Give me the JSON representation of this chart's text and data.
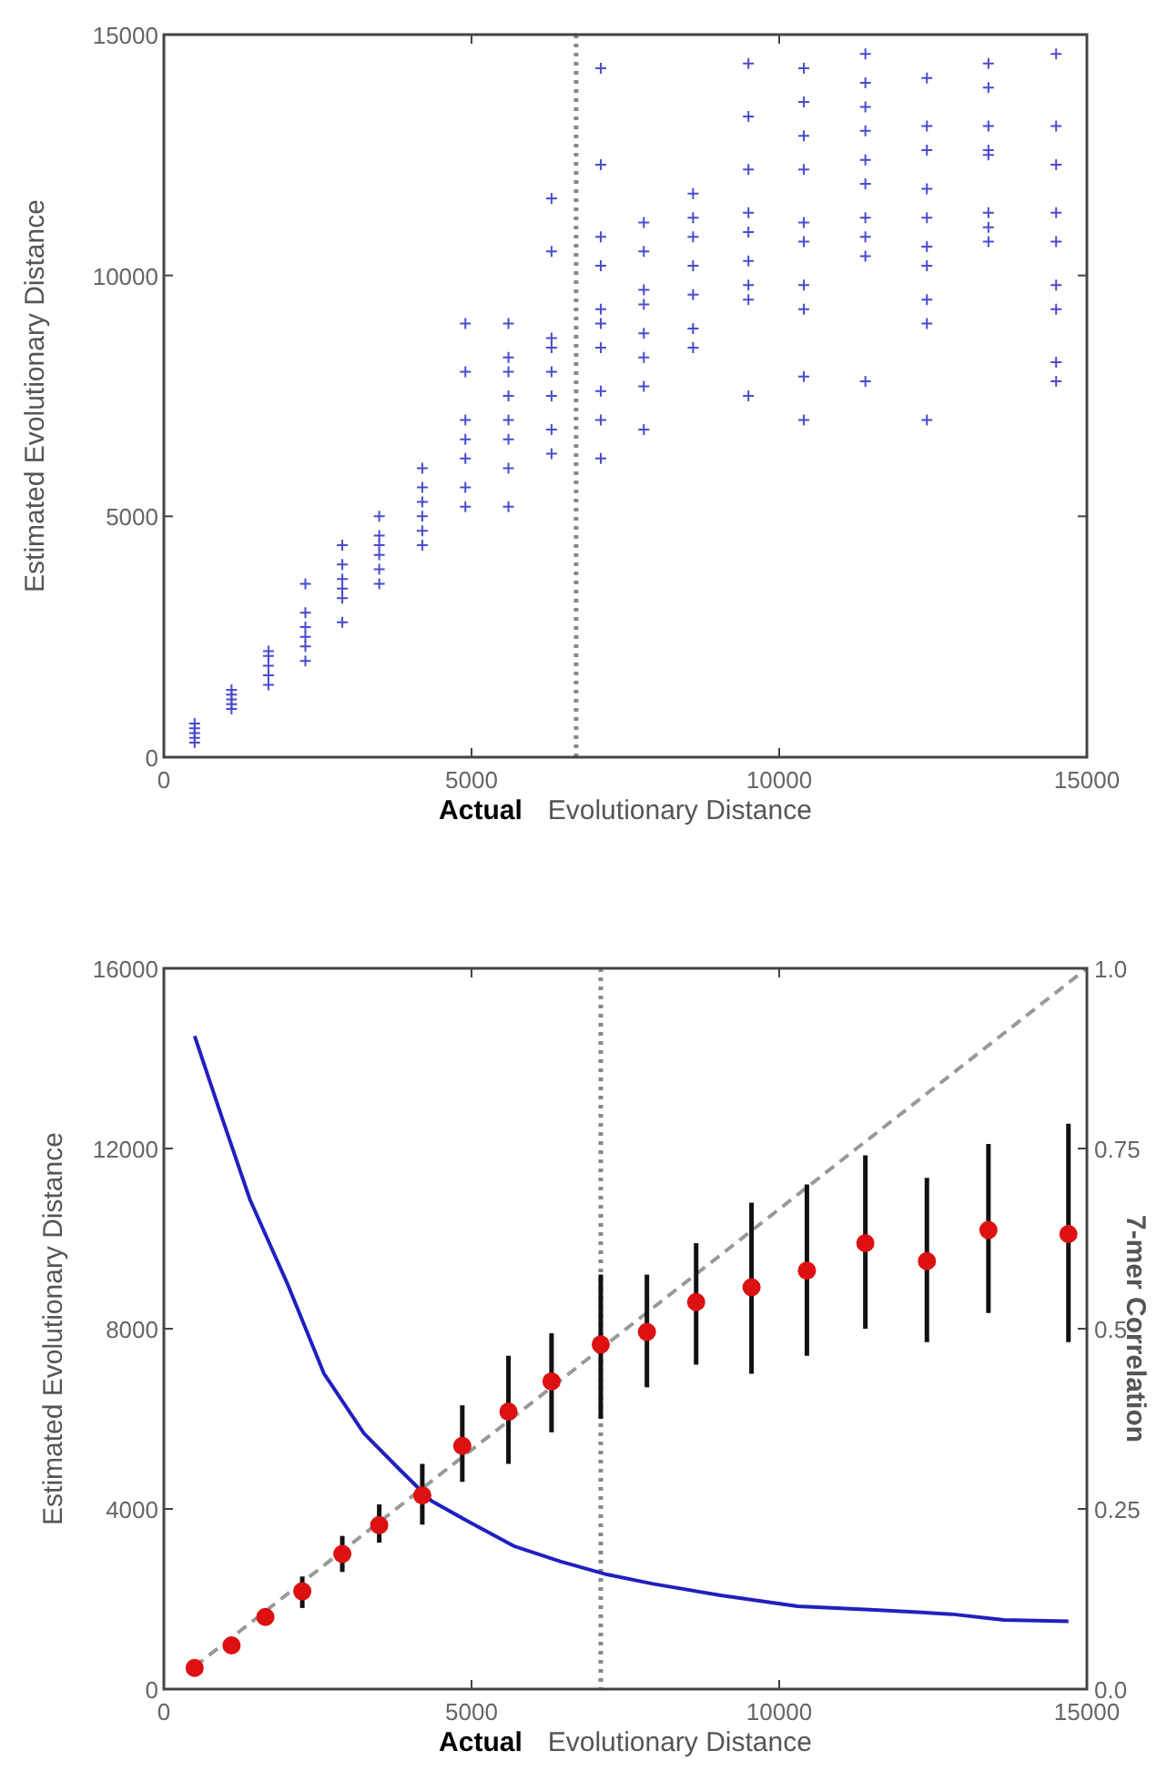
{
  "chart_data": [
    {
      "type": "scatter",
      "xlabel": "Actual Evolutionary Distance",
      "ylabel": "Estimated Evolutionary Distance",
      "xlim": [
        0,
        15000
      ],
      "ylim": [
        0,
        15000
      ],
      "xticks": [
        0,
        5000,
        10000,
        15000
      ],
      "yticks": [
        0,
        5000,
        10000,
        15000
      ],
      "marker": "cross",
      "grid": false,
      "ref_lines": [
        {
          "axis": "x",
          "value": 6700,
          "color": "#888888",
          "line_style": "dotted"
        }
      ],
      "series": [
        {
          "color": "#4a4ad0",
          "x": [
            500,
            500,
            500,
            500,
            500,
            1100,
            1100,
            1100,
            1100,
            1100,
            1700,
            1700,
            1700,
            1700,
            1700,
            2300,
            2300,
            2300,
            2300,
            2300,
            2300,
            2900,
            2900,
            2900,
            2900,
            2900,
            2900,
            3500,
            3500,
            3500,
            3500,
            3500,
            3500,
            4200,
            4200,
            4200,
            4200,
            4200,
            4200,
            4900,
            4900,
            4900,
            4900,
            4900,
            4900,
            4900,
            5600,
            5600,
            5600,
            5600,
            5600,
            5600,
            5600,
            5600,
            6300,
            6300,
            6300,
            6300,
            6300,
            6300,
            6300,
            6300,
            7100,
            7100,
            7100,
            7100,
            7100,
            7100,
            7100,
            7100,
            7100,
            7100,
            7800,
            7800,
            7800,
            7800,
            7800,
            7800,
            7800,
            7800,
            8600,
            8600,
            8600,
            8600,
            8600,
            8600,
            8600,
            9500,
            9500,
            9500,
            9500,
            9500,
            9500,
            9500,
            9500,
            9500,
            10400,
            10400,
            10400,
            10400,
            10400,
            10400,
            10400,
            10400,
            10400,
            10400,
            11400,
            11400,
            11400,
            11400,
            11400,
            11400,
            11400,
            11400,
            11400,
            11400,
            12400,
            12400,
            12400,
            12400,
            12400,
            12400,
            12400,
            12400,
            12400,
            12400,
            13400,
            13400,
            13400,
            13400,
            13400,
            13400,
            13400,
            13400,
            14500,
            14500,
            14500,
            14500,
            14500,
            14500,
            14500,
            14500,
            14500
          ],
          "values": [
            300,
            400,
            500,
            600,
            700,
            1000,
            1100,
            1200,
            1300,
            1400,
            1500,
            1700,
            1900,
            2100,
            2200,
            2000,
            2300,
            2500,
            2700,
            3000,
            3600,
            2800,
            3300,
            3500,
            3700,
            4000,
            4400,
            3600,
            3900,
            4200,
            4400,
            4600,
            5000,
            4400,
            4700,
            5000,
            5300,
            5600,
            6000,
            5200,
            5600,
            6200,
            6600,
            7000,
            8000,
            9000,
            5200,
            6000,
            6600,
            7000,
            7500,
            8000,
            8300,
            9000,
            6300,
            6800,
            7500,
            8000,
            8500,
            8700,
            10500,
            11600,
            6200,
            7000,
            7600,
            8500,
            9000,
            9300,
            10200,
            10800,
            12300,
            14300,
            6800,
            7700,
            8300,
            8800,
            9400,
            9700,
            10500,
            11100,
            8500,
            8900,
            9600,
            10200,
            10800,
            11200,
            11700,
            7500,
            9500,
            9800,
            10300,
            10900,
            11300,
            12200,
            13300,
            14400,
            7000,
            7900,
            9300,
            9800,
            10700,
            11100,
            12200,
            12900,
            13600,
            14300,
            7800,
            10400,
            10800,
            11200,
            11900,
            12400,
            13000,
            13500,
            14000,
            14600,
            7000,
            9000,
            9500,
            10200,
            10600,
            11200,
            11800,
            12600,
            13100,
            14100,
            10700,
            11000,
            11300,
            12500,
            12600,
            13100,
            13900,
            14400,
            7800,
            8200,
            9300,
            9800,
            10700,
            11300,
            12300,
            13100,
            14600
          ]
        }
      ]
    },
    {
      "type": "line",
      "xlabel": "Actual Evolutionary Distance",
      "ylabel": "Estimated Evolutionary Distance",
      "y2label": "7-mer Correlation",
      "xlim": [
        0,
        15000
      ],
      "ylim": [
        0,
        16000
      ],
      "y2lim": [
        0,
        1
      ],
      "xticks": [
        0,
        5000,
        10000,
        15000
      ],
      "yticks": [
        0,
        4000,
        8000,
        12000,
        16000
      ],
      "y2ticks": [
        {
          "value": 0,
          "label": "0.0"
        },
        0.25,
        0.5,
        0.75,
        {
          "value": 1,
          "label": "1.0"
        }
      ],
      "grid": false,
      "ref_lines": [
        {
          "axis": "x",
          "value": 7100,
          "color": "#888888",
          "line_style": "dotted"
        }
      ],
      "series": [
        {
          "color": "#2020c0",
          "axis": "y2",
          "marker": "none",
          "line_style": "solid",
          "x": [
            500,
            900,
            1400,
            2000,
            2600,
            3250,
            3850,
            4350,
            5000,
            5700,
            6450,
            7200,
            7950,
            9050,
            10300,
            11550,
            12800,
            13650,
            14700
          ],
          "values": [
            0.906,
            0.804,
            0.679,
            0.564,
            0.438,
            0.355,
            0.303,
            0.261,
            0.23,
            0.198,
            0.177,
            0.159,
            0.146,
            0.13,
            0.115,
            0.11,
            0.104,
            0.096,
            0.094
          ]
        },
        {
          "color": "#999999",
          "marker": "none",
          "line_style": "dashed",
          "x": [
            500,
            15000
          ],
          "values": [
            500,
            16000
          ]
        },
        {
          "type": "scatter",
          "color": "#dd1111",
          "marker": "circle",
          "x": [
            500,
            1100,
            1650,
            2250,
            2900,
            3500,
            4200,
            4850,
            5600,
            6300,
            7100,
            7850,
            8650,
            9550,
            10450,
            11400,
            12400,
            13400,
            14700
          ],
          "values": [
            470,
            970,
            1600,
            2170,
            3000,
            3640,
            4300,
            5400,
            6160,
            6830,
            7650,
            7930,
            8590,
            8920,
            9290,
            9900,
            9500,
            10190,
            10100
          ],
          "errors": [
            null,
            null,
            null,
            [
              1800,
              2500
            ],
            [
              2600,
              3400
            ],
            [
              3250,
              4100
            ],
            [
              3650,
              5000
            ],
            [
              4600,
              6300
            ],
            [
              5000,
              7400
            ],
            [
              5700,
              7900
            ],
            [
              6000,
              9200
            ],
            [
              6700,
              9200
            ],
            [
              7200,
              9900
            ],
            [
              7000,
              10800
            ],
            [
              7400,
              11200
            ],
            [
              8000,
              11850
            ],
            [
              7700,
              11350
            ],
            [
              8350,
              12100
            ],
            [
              7700,
              12550
            ]
          ]
        }
      ]
    }
  ]
}
